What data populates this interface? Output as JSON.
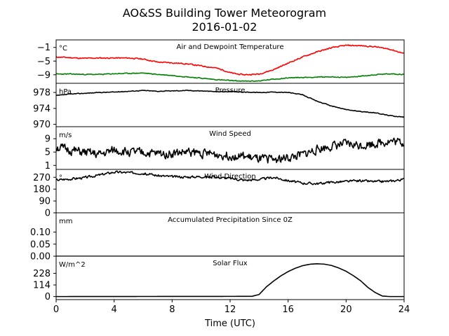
{
  "title": "AO&SS Building Tower Meteorogram",
  "subtitle": "2016-01-02",
  "chart_data": {
    "type": "line",
    "xlabel": "Time (UTC)",
    "xlim": [
      0,
      24
    ],
    "xticks": [
      0,
      4,
      8,
      12,
      16,
      20,
      24
    ],
    "xtick_labels": [
      "0",
      "4",
      "8",
      "12",
      "16",
      "20",
      "24"
    ],
    "panels": [
      {
        "id": "temperature",
        "title": "Air and Dewpoint Temperature",
        "unit": "°C",
        "ylim": [
          -11.5,
          1.2
        ],
        "yticks": [
          -1,
          -5,
          -9
        ],
        "ytick_labels": [
          "−1",
          "−5",
          "−9"
        ],
        "series": [
          {
            "color": "#ff0000",
            "noise": 0.15,
            "seed": 11,
            "x": [
              0,
              1,
              1.8,
              3,
              4,
              5,
              6,
              7,
              8,
              9,
              10,
              11,
              11.5,
              12,
              12.5,
              13,
              14,
              15,
              16,
              17,
              18,
              19,
              20,
              21,
              22,
              23,
              24
            ],
            "y": [
              -3.8,
              -4.0,
              -4.2,
              -4.1,
              -4.1,
              -4.1,
              -4.4,
              -5.3,
              -5.5,
              -5.8,
              -6.4,
              -7.0,
              -7.6,
              -8.4,
              -8.8,
              -9.0,
              -8.8,
              -7.5,
              -5.6,
              -3.8,
              -2.3,
              -1.1,
              -0.4,
              -0.5,
              -0.8,
              -1.5,
              -2.8
            ]
          },
          {
            "color": "#008000",
            "noise": 0.12,
            "seed": 23,
            "x": [
              0,
              1,
              2,
              3,
              4,
              5,
              6,
              7,
              8,
              9,
              10,
              11,
              12,
              13,
              14,
              15,
              16,
              17,
              18,
              19,
              20,
              21,
              22,
              23,
              24
            ],
            "y": [
              -8.8,
              -8.8,
              -8.9,
              -8.9,
              -8.7,
              -8.6,
              -8.5,
              -8.9,
              -9.2,
              -9.6,
              -10.0,
              -10.4,
              -10.7,
              -10.9,
              -10.8,
              -10.3,
              -9.9,
              -9.8,
              -9.7,
              -9.6,
              -9.8,
              -9.4,
              -9.0,
              -8.7,
              -8.9
            ]
          }
        ]
      },
      {
        "id": "pressure",
        "title": "Pressure",
        "unit": "hPa",
        "ylim": [
          969.4,
          980.3
        ],
        "yticks": [
          978,
          974,
          970
        ],
        "ytick_labels": [
          "978",
          "974",
          "970"
        ],
        "series": [
          {
            "color": "#000000",
            "noise": 0.08,
            "seed": 37,
            "x": [
              0,
              1,
              2,
              3,
              4,
              5,
              6,
              7,
              8,
              9,
              10,
              11,
              12,
              13,
              14,
              15,
              16,
              17,
              18,
              19,
              20,
              21,
              22,
              23,
              24
            ],
            "y": [
              977.2,
              977.6,
              977.8,
              978.0,
              978.1,
              978.3,
              978.5,
              978.3,
              978.4,
              978.5,
              978.4,
              978.2,
              978.2,
              978.1,
              978.0,
              978.1,
              978.0,
              977.4,
              975.8,
              974.6,
              973.7,
              973.2,
              972.9,
              972.2,
              971.8
            ]
          }
        ]
      },
      {
        "id": "wind_speed",
        "title": "Wind Speed",
        "unit": "m/s",
        "ylim": [
          -0.2,
          12.6
        ],
        "yticks": [
          9,
          5,
          1
        ],
        "ytick_labels": [
          "9",
          "5",
          "1"
        ],
        "series": [
          {
            "color": "#000000",
            "noise": 1.2,
            "seed": 51,
            "x": [
              0,
              1,
              2,
              3,
              4,
              5,
              6,
              7,
              8,
              9,
              10,
              11,
              12,
              13,
              14,
              15,
              16,
              17,
              18,
              19,
              20,
              21,
              22,
              23,
              24
            ],
            "y": [
              6.5,
              5.5,
              4.8,
              4.2,
              5.5,
              5.0,
              4.8,
              4.5,
              4.6,
              5.0,
              4.7,
              4.3,
              4.0,
              3.6,
              2.8,
              2.9,
              3.2,
              4.2,
              5.8,
              6.8,
              7.4,
              7.0,
              7.6,
              8.3,
              7.8
            ]
          }
        ]
      },
      {
        "id": "wind_direction",
        "title": "Wind Direction",
        "unit": "°",
        "ylim": [
          0,
          330
        ],
        "yticks": [
          270,
          180,
          90,
          0
        ],
        "ytick_labels": [
          "270",
          "180",
          "90",
          "0"
        ],
        "series": [
          {
            "color": "#000000",
            "noise": 8,
            "seed": 67,
            "x": [
              0,
              1,
              2,
              3,
              4,
              5,
              6,
              7,
              8,
              9,
              10,
              11,
              12,
              13,
              14,
              15,
              16,
              17,
              18,
              19,
              20,
              21,
              22,
              23,
              24
            ],
            "y": [
              250,
              258,
              268,
              288,
              310,
              306,
              300,
              283,
              275,
              272,
              276,
              271,
              262,
              248,
              254,
              270,
              245,
              226,
              222,
              232,
              238,
              243,
              237,
              240,
              255
            ]
          }
        ]
      },
      {
        "id": "precipitation",
        "title": "Accumulated Precipitation Since 0Z",
        "unit": "mm",
        "ylim": [
          0,
          0.18
        ],
        "yticks": [
          0.1,
          0.05,
          0.0
        ],
        "ytick_labels": [
          "0.10",
          "0.05",
          "0.00"
        ],
        "series": [
          {
            "color": "#000000",
            "noise": 0,
            "seed": 0,
            "x": [
              0,
              24
            ],
            "y": [
              0,
              0
            ]
          }
        ]
      },
      {
        "id": "solar_flux",
        "title": "Solar Flux",
        "unit": "W/m^2",
        "ylim": [
          -30,
          396
        ],
        "yticks": [
          228,
          114,
          0
        ],
        "ytick_labels": [
          "228",
          "114",
          "0"
        ],
        "series": [
          {
            "color": "#000000",
            "noise": 0,
            "seed": 0,
            "x": [
              0,
              13.5,
              14,
              14.5,
              15,
              15.5,
              16,
              16.5,
              17,
              17.5,
              18,
              18.5,
              19,
              19.5,
              20,
              20.5,
              21,
              21.5,
              22,
              22.5,
              23,
              24
            ],
            "y": [
              0,
              2,
              20,
              95,
              152,
              203,
              245,
              278,
              303,
              317,
              322,
              318,
              305,
              280,
              248,
              205,
              155,
              90,
              40,
              5,
              0,
              0
            ]
          }
        ]
      }
    ]
  }
}
